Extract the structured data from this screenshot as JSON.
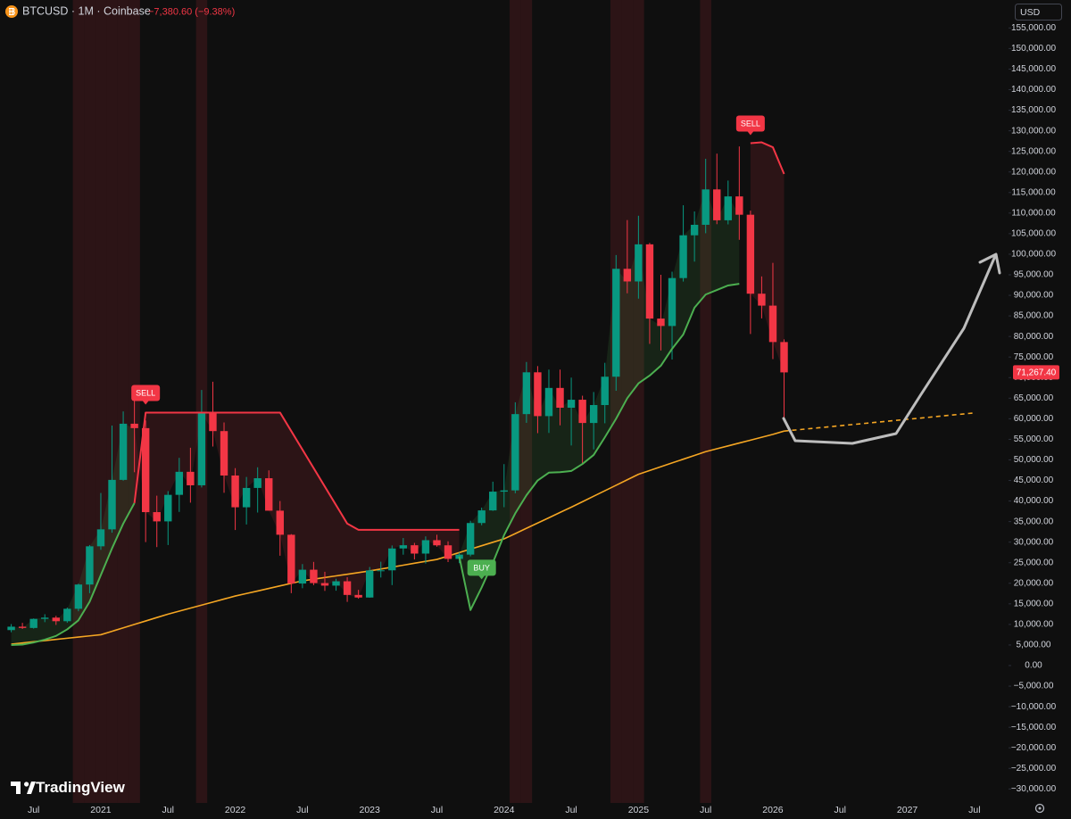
{
  "chart_data": {
    "type": "candlestick",
    "symbol_line": "BTCUSD · 1M · Coinbase",
    "change_label": "−7,380.60 (−9.38%)",
    "currency": "USD",
    "watermark": "TradingView",
    "last_label": "71,267.40",
    "up_color": "#089981",
    "down_color": "#f23645",
    "highlight_color": "rgba(242,54,69,0.13)",
    "categories": [
      null,
      null,
      "Jul",
      null,
      null,
      null,
      null,
      null,
      "2021",
      null,
      null,
      null,
      null,
      null,
      "Jul",
      null,
      null,
      null,
      null,
      null,
      "2022",
      null,
      null,
      null,
      null,
      null,
      "Jul",
      null,
      null,
      null,
      null,
      null,
      "2023",
      null,
      null,
      null,
      null,
      null,
      "Jul",
      null,
      null,
      null,
      null,
      null,
      "2024",
      null,
      null,
      null,
      null,
      null,
      "Jul",
      null,
      null,
      null,
      null,
      null,
      "2025",
      null,
      null,
      null,
      null,
      null,
      "Jul",
      null,
      null,
      null,
      null,
      null,
      "2026",
      null,
      null,
      null,
      null,
      null,
      "Jul",
      null,
      null,
      null,
      null,
      null,
      "2027",
      null,
      null,
      null,
      null,
      null,
      "Jul"
    ],
    "open": [
      8620,
      9450,
      9140,
      11350,
      11650,
      10780,
      13800,
      19700,
      28990,
      33110,
      45140,
      58790,
      57720,
      37300,
      35050,
      41500,
      47100,
      43820,
      61300,
      57000,
      46200,
      38480,
      43180,
      45540,
      37650,
      31800,
      19940,
      23300,
      20050,
      19430,
      20490,
      17170,
      16540,
      23130,
      23150,
      28470,
      29250,
      27220,
      30480,
      29230,
      25930,
      26970,
      34650,
      37720,
      42280,
      42580,
      61130,
      71290,
      60640,
      67490,
      62680,
      64620,
      58970,
      63330,
      70220,
      96450,
      93380,
      102400,
      84350,
      82550,
      94200,
      104600,
      107150,
      115750,
      108250,
      114050,
      109600,
      90400,
      87500,
      78648,
      null,
      null,
      null,
      null,
      null,
      null,
      null,
      null,
      null,
      null,
      null,
      null,
      null,
      null,
      null,
      null,
      null
    ],
    "high": [
      10080,
      10380,
      11450,
      12480,
      12090,
      14100,
      19900,
      29300,
      41950,
      58350,
      61780,
      64900,
      59600,
      41300,
      42400,
      50500,
      52950,
      67000,
      69000,
      59100,
      47990,
      45850,
      48200,
      47450,
      40000,
      31950,
      24670,
      25200,
      22800,
      21100,
      21480,
      18400,
      23960,
      25250,
      29200,
      31000,
      29820,
      31400,
      31800,
      30200,
      27480,
      35200,
      38400,
      44700,
      48970,
      64000,
      73800,
      72800,
      71950,
      71950,
      70000,
      65600,
      66500,
      73600,
      99800,
      108300,
      109350,
      102750,
      95000,
      95750,
      111900,
      110400,
      123200,
      124450,
      117900,
      126200,
      110600,
      94600,
      97900,
      79300,
      null,
      null,
      null,
      null,
      null,
      null,
      null,
      null,
      null,
      null,
      null,
      null,
      null,
      null,
      null,
      null,
      null
    ],
    "low": [
      8100,
      8900,
      8980,
      10550,
      9880,
      10400,
      13200,
      17600,
      28130,
      32300,
      44950,
      47000,
      30000,
      28800,
      29300,
      37350,
      39600,
      43300,
      53250,
      42000,
      32950,
      34300,
      37200,
      37700,
      26700,
      17600,
      18800,
      19550,
      18150,
      18200,
      15480,
      16260,
      16500,
      21400,
      19560,
      26950,
      25800,
      24800,
      28900,
      25160,
      24900,
      26550,
      34100,
      37600,
      38500,
      41880,
      59000,
      56500,
      56550,
      58400,
      53500,
      49000,
      52550,
      58900,
      66800,
      90500,
      89200,
      78200,
      76600,
      74400,
      93350,
      98200,
      105100,
      107300,
      107250,
      103500,
      80600,
      84400,
      74500,
      60000,
      null,
      null,
      null,
      null,
      null,
      null,
      null,
      null,
      null,
      null,
      null,
      null,
      null,
      null,
      null,
      null,
      null
    ],
    "close": [
      9450,
      9140,
      11350,
      11650,
      10780,
      13800,
      19700,
      28990,
      33110,
      45140,
      58790,
      57720,
      37300,
      35050,
      41500,
      47100,
      43820,
      61300,
      57000,
      46200,
      38480,
      43180,
      45540,
      37650,
      31800,
      19940,
      23300,
      20050,
      19430,
      20490,
      17170,
      16540,
      23130,
      23150,
      28470,
      29250,
      27220,
      30480,
      29230,
      25930,
      26970,
      34650,
      37720,
      42280,
      42580,
      61130,
      71290,
      60640,
      67490,
      62680,
      64620,
      58970,
      63330,
      70220,
      96450,
      93380,
      102400,
      84350,
      82550,
      94200,
      104600,
      107150,
      115750,
      108250,
      114050,
      109600,
      90400,
      87500,
      78648,
      71267.4,
      null,
      null,
      null,
      null,
      null,
      null,
      null,
      null,
      null,
      null,
      null,
      null,
      null,
      null,
      null,
      null,
      null
    ],
    "highlight": [
      0,
      0,
      0,
      0,
      0,
      0,
      1,
      1,
      1,
      1,
      1,
      1,
      0,
      0,
      0,
      0,
      0,
      1,
      0,
      0,
      0,
      0,
      0,
      0,
      0,
      0,
      0,
      0,
      0,
      0,
      0,
      0,
      0,
      0,
      0,
      0,
      0,
      0,
      0,
      0,
      0,
      0,
      0,
      0,
      0,
      1,
      1,
      0,
      0,
      0,
      0,
      0,
      0,
      0,
      1,
      1,
      1,
      0,
      0,
      0,
      0,
      0,
      1,
      0,
      0,
      0,
      0,
      0,
      0,
      0,
      0,
      0,
      0,
      0,
      0,
      0,
      0,
      0,
      0,
      0,
      0,
      0,
      0,
      0,
      0,
      0,
      0
    ],
    "lines": [
      {
        "color": "#f5a623",
        "width": 1.6,
        "dashed": false,
        "values": [
          5200,
          5490,
          5780,
          6060,
          6350,
          6640,
          6920,
          7210,
          7500,
          8330,
          9170,
          10000,
          10830,
          11670,
          12500,
          13230,
          13970,
          14700,
          15430,
          16170,
          16900,
          17520,
          18130,
          18750,
          19370,
          19980,
          20600,
          21000,
          21400,
          21800,
          22200,
          22600,
          23000,
          23470,
          23930,
          24400,
          24870,
          25330,
          25800,
          26630,
          27470,
          28300,
          29130,
          29970,
          30800,
          32080,
          33370,
          34650,
          35930,
          37220,
          38500,
          39830,
          41170,
          42500,
          43830,
          45170,
          46500,
          47420,
          48330,
          49250,
          50170,
          51080,
          52000,
          52700,
          53400,
          54100,
          54800,
          55500,
          56200,
          57000,
          null,
          null,
          null,
          null,
          null,
          null,
          null,
          null,
          null,
          null,
          null,
          null,
          null,
          null,
          null,
          null,
          null
        ]
      },
      {
        "color": "#f5a623",
        "width": 1.6,
        "dashed": true,
        "values": [
          null,
          null,
          null,
          null,
          null,
          null,
          null,
          null,
          null,
          null,
          null,
          null,
          null,
          null,
          null,
          null,
          null,
          null,
          null,
          null,
          null,
          null,
          null,
          null,
          null,
          null,
          null,
          null,
          null,
          null,
          null,
          null,
          null,
          null,
          null,
          null,
          null,
          null,
          null,
          null,
          null,
          null,
          null,
          null,
          null,
          null,
          null,
          null,
          null,
          null,
          null,
          null,
          null,
          null,
          null,
          null,
          null,
          null,
          null,
          null,
          null,
          null,
          null,
          null,
          null,
          null,
          null,
          null,
          null,
          57000,
          57260,
          57520,
          57780,
          58040,
          58300,
          58560,
          58820,
          59080,
          59340,
          59600,
          59860,
          60120,
          60380,
          60640,
          60900,
          61160,
          61420
        ]
      },
      {
        "color": "#4caf50",
        "width": 2,
        "dashed": false,
        "fill": "rgba(76,175,80,0.13)",
        "values": [
          5000,
          5100,
          5600,
          6300,
          7200,
          8800,
          11000,
          15500,
          22000,
          28500,
          34500,
          39500,
          null,
          null,
          null,
          null,
          null,
          null,
          null,
          null,
          null,
          null,
          null,
          null,
          null,
          null,
          null,
          null,
          null,
          null,
          null,
          null,
          null,
          null,
          null,
          null,
          null,
          null,
          null,
          null,
          26500,
          13500,
          19000,
          25000,
          31700,
          37000,
          41400,
          45000,
          46900,
          47000,
          47300,
          49000,
          51200,
          55500,
          60000,
          65000,
          68600,
          70500,
          72900,
          77000,
          80500,
          87000,
          90200,
          91300,
          92400,
          92800,
          null,
          null,
          null,
          null,
          null,
          null,
          null,
          null,
          null,
          null,
          null,
          null,
          null,
          null,
          null,
          null,
          null,
          null,
          null,
          null,
          null
        ]
      },
      {
        "color": "#f23645",
        "width": 2,
        "dashed": false,
        "fill": "rgba(242,54,69,0.13)",
        "values": [
          null,
          null,
          null,
          null,
          null,
          null,
          null,
          null,
          null,
          null,
          null,
          39500,
          61500,
          61500,
          61500,
          61500,
          61500,
          61500,
          61500,
          61500,
          61500,
          61500,
          61500,
          61500,
          61500,
          57000,
          52500,
          48000,
          43500,
          39000,
          34500,
          33000,
          33000,
          33000,
          33000,
          33000,
          33000,
          33000,
          33000,
          33000,
          33000,
          null,
          null,
          null,
          null,
          null,
          null,
          null,
          null,
          null,
          null,
          null,
          null,
          null,
          null,
          null,
          null,
          null,
          null,
          null,
          null,
          null,
          null,
          null,
          null,
          null,
          127000,
          127200,
          126000,
          119500,
          null,
          null,
          null,
          null,
          null,
          null,
          null,
          null,
          null,
          null,
          null,
          null,
          null,
          null,
          null,
          null,
          null
        ]
      }
    ],
    "signals": [
      null,
      null,
      null,
      null,
      null,
      null,
      null,
      null,
      null,
      null,
      null,
      null,
      {
        "label": "SELL",
        "color": "#f23645"
      },
      null,
      null,
      null,
      null,
      null,
      null,
      null,
      null,
      null,
      null,
      null,
      null,
      null,
      null,
      null,
      null,
      null,
      null,
      null,
      null,
      null,
      null,
      null,
      null,
      null,
      null,
      null,
      null,
      null,
      {
        "label": "BUY",
        "color": "#4caf50"
      },
      null,
      null,
      null,
      null,
      null,
      null,
      null,
      null,
      null,
      null,
      null,
      null,
      null,
      null,
      null,
      null,
      null,
      null,
      null,
      null,
      null,
      null,
      null,
      {
        "label": "SELL",
        "color": "#f23645"
      },
      null,
      null,
      null,
      null,
      null,
      null,
      null,
      null,
      null,
      null,
      null,
      null,
      null,
      null,
      null,
      null,
      null,
      null,
      null,
      null
    ],
    "ylim": [
      -33400,
      161800
    ],
    "yticks": [
      {
        "value": -30000,
        "label": "−30,000.00"
      },
      {
        "value": -25000,
        "label": "−25,000.00"
      },
      {
        "value": -20000,
        "label": "−20,000.00"
      },
      {
        "value": -15000,
        "label": "−15,000.00"
      },
      {
        "value": -10000,
        "label": "−10,000.00"
      },
      {
        "value": -5000,
        "label": "−5,000.00"
      },
      {
        "value": 0,
        "label": "0.00"
      },
      {
        "value": 5000,
        "label": "5,000.00"
      },
      {
        "value": 10000,
        "label": "10,000.00"
      },
      {
        "value": 15000,
        "label": "15,000.00"
      },
      {
        "value": 20000,
        "label": "20,000.00"
      },
      {
        "value": 25000,
        "label": "25,000.00"
      },
      {
        "value": 30000,
        "label": "30,000.00"
      },
      {
        "value": 35000,
        "label": "35,000.00"
      },
      {
        "value": 40000,
        "label": "40,000.00"
      },
      {
        "value": 45000,
        "label": "45,000.00"
      },
      {
        "value": 50000,
        "label": "50,000.00"
      },
      {
        "value": 55000,
        "label": "55,000.00"
      },
      {
        "value": 60000,
        "label": "60,000.00"
      },
      {
        "value": 65000,
        "label": "65,000.00"
      },
      {
        "value": 70000,
        "label": "70,000.00"
      },
      {
        "value": 75000,
        "label": "75,000.00"
      },
      {
        "value": 80000,
        "label": "80,000.00"
      },
      {
        "value": 85000,
        "label": "85,000.00"
      },
      {
        "value": 90000,
        "label": "90,000.00"
      },
      {
        "value": 95000,
        "label": "95,000.00"
      },
      {
        "value": 100000,
        "label": "100,000.00"
      },
      {
        "value": 105000,
        "label": "105,000.00"
      },
      {
        "value": 110000,
        "label": "110,000.00"
      },
      {
        "value": 115000,
        "label": "115,000.00"
      },
      {
        "value": 120000,
        "label": "120,000.00"
      },
      {
        "value": 125000,
        "label": "125,000.00"
      },
      {
        "value": 130000,
        "label": "130,000.00"
      },
      {
        "value": 135000,
        "label": "135,000.00"
      },
      {
        "value": 140000,
        "label": "140,000.00"
      },
      {
        "value": 145000,
        "label": "145,000.00"
      },
      {
        "value": 150000,
        "label": "150,000.00"
      },
      {
        "value": 155000,
        "label": "155,000.00"
      }
    ],
    "grid": false
  }
}
